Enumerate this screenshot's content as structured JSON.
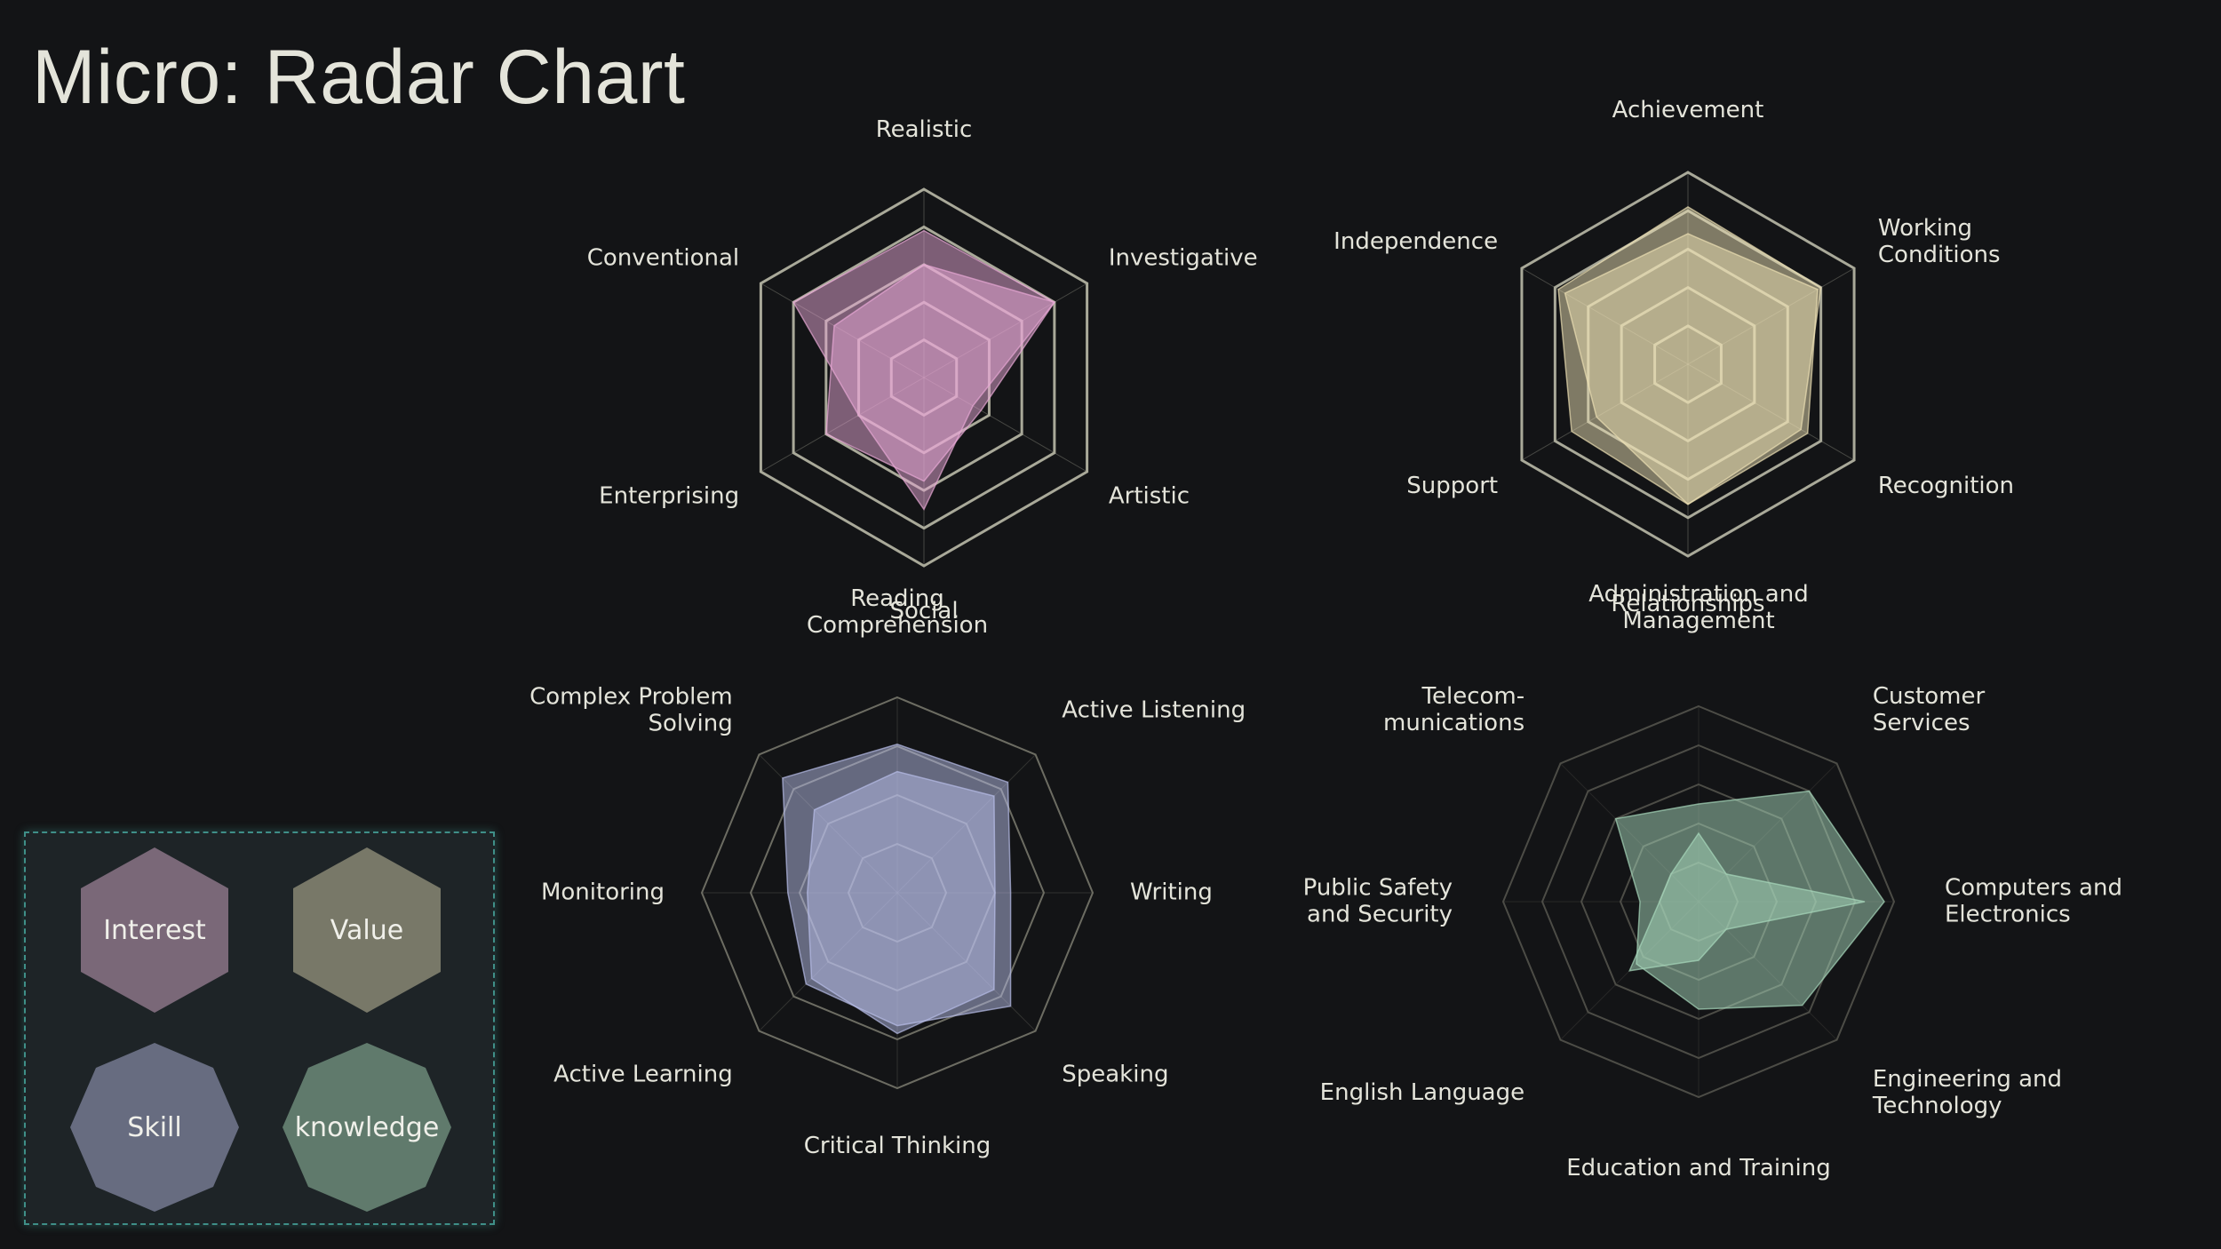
{
  "page": {
    "title": "Micro: Radar Chart"
  },
  "legend": {
    "items": [
      {
        "label": "Interest",
        "shape": "hexagon",
        "color": "#7a6878"
      },
      {
        "label": "Value",
        "shape": "hexagon",
        "color": "#787868"
      },
      {
        "label": "Skill",
        "shape": "octagon",
        "color": "#676c80"
      },
      {
        "label": "knowledge",
        "shape": "octagon",
        "color": "#607a6c"
      }
    ]
  },
  "chart_data": [
    {
      "type": "radar",
      "category": "Interest",
      "shape": "hexagon",
      "rings": 5,
      "axes": [
        [
          "Realistic"
        ],
        [
          "Investigative"
        ],
        [
          "Artistic"
        ],
        [
          "Social"
        ],
        [
          "Enterprising"
        ],
        [
          "Conventional"
        ]
      ],
      "fill_color": "#e8a8d6",
      "grid_color": "#a9a999",
      "series": [
        {
          "values": [
            0.78,
            0.8,
            0.3,
            0.7,
            0.4,
            0.8
          ]
        },
        {
          "values": [
            0.6,
            0.8,
            0.35,
            0.55,
            0.6,
            0.55
          ]
        }
      ]
    },
    {
      "type": "radar",
      "category": "Value",
      "shape": "hexagon",
      "rings": 5,
      "axes": [
        [
          "Achievement"
        ],
        [
          "Working",
          "Conditions"
        ],
        [
          "Recognition"
        ],
        [
          "Relationships"
        ],
        [
          "Support"
        ],
        [
          "Independence"
        ]
      ],
      "fill_color": "#ece0b4",
      "grid_color": "#a9a999",
      "series": [
        {
          "values": [
            0.82,
            0.8,
            0.68,
            0.73,
            0.7,
            0.78
          ]
        },
        {
          "values": [
            0.68,
            0.78,
            0.72,
            0.73,
            0.55,
            0.74
          ]
        }
      ]
    },
    {
      "type": "radar",
      "category": "Skill",
      "shape": "octagon",
      "rings": 4,
      "axes": [
        [
          "Reading",
          "Comprehension"
        ],
        [
          "Active Listening"
        ],
        [
          "Writing"
        ],
        [
          "Speaking"
        ],
        [
          "Critical Thinking"
        ],
        [
          "Active Learning"
        ],
        [
          "Monitoring"
        ],
        [
          "Complex Problem",
          "Solving"
        ]
      ],
      "fill_color": "#b8bee8",
      "grid_color": "#6c6c62",
      "series": [
        {
          "values": [
            0.76,
            0.8,
            0.58,
            0.82,
            0.68,
            0.66,
            0.56,
            0.83
          ]
        },
        {
          "values": [
            0.62,
            0.7,
            0.5,
            0.7,
            0.72,
            0.62,
            0.46,
            0.6
          ]
        }
      ]
    },
    {
      "type": "radar",
      "category": "knowledge",
      "shape": "octagon",
      "rings": 5,
      "axes": [
        [
          "Administration and",
          "Management"
        ],
        [
          "Customer",
          "Services"
        ],
        [
          "Computers and",
          "Electronics"
        ],
        [
          "Engineering and",
          "Technology"
        ],
        [
          "Education and Training"
        ],
        [
          "English Language"
        ],
        [
          "Public Safety",
          "and Security"
        ],
        [
          "Telecom-",
          "munications"
        ]
      ],
      "fill_color": "#a8d8bc",
      "grid_color": "#4c4c46",
      "series": [
        {
          "values": [
            0.5,
            0.8,
            0.95,
            0.75,
            0.55,
            0.45,
            0.3,
            0.6
          ]
        },
        {
          "values": [
            0.35,
            0.2,
            0.85,
            0.2,
            0.3,
            0.5,
            0.2,
            0.2
          ]
        }
      ]
    }
  ]
}
